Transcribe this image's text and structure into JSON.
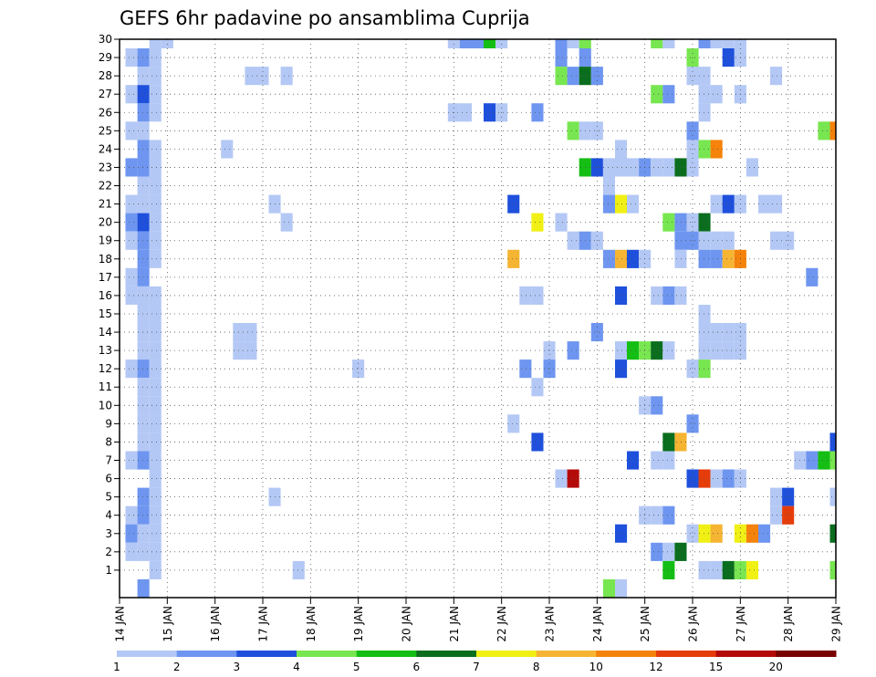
{
  "chart_data": {
    "type": "heatmap",
    "title": "GEFS 6hr padavine po ansamblima Cuprija",
    "x_ticks": [
      "14 JAN",
      "15 JAN",
      "16 JAN",
      "17 JAN",
      "18 JAN",
      "19 JAN",
      "20 JAN",
      "21 JAN",
      "22 JAN",
      "23 JAN",
      "24 JAN",
      "25 JAN",
      "26 JAN",
      "27 JAN",
      "28 JAN",
      "29 JAN"
    ],
    "y_ticks": [
      "1",
      "2",
      "3",
      "4",
      "5",
      "6",
      "7",
      "8",
      "9",
      "10",
      "11",
      "12",
      "13",
      "14",
      "15",
      "16",
      "17",
      "18",
      "19",
      "20",
      "21",
      "22",
      "23",
      "24",
      "25",
      "26",
      "27",
      "28",
      "29",
      "30"
    ],
    "x_range_days": [
      14.0,
      29.0
    ],
    "step_hours": 6,
    "y_range_members": [
      0,
      30
    ],
    "grid": "dotted",
    "colorbar": {
      "labels": [
        "1",
        "2",
        "3",
        "4",
        "5",
        "6",
        "7",
        "8",
        "10",
        "12",
        "15",
        "20"
      ],
      "colors": [
        "#b4c8f5",
        "#6e96f0",
        "#1e50dc",
        "#78e650",
        "#14be14",
        "#0a6e1e",
        "#f0f014",
        "#f5b432",
        "#f5820a",
        "#e63c0a",
        "#b40a0a",
        "#780000"
      ]
    },
    "cells": [
      [
        30,
        14.75,
        0
      ],
      [
        30,
        15.0,
        0
      ],
      [
        30,
        21.0,
        0
      ],
      [
        30,
        21.25,
        1
      ],
      [
        30,
        21.5,
        1
      ],
      [
        30,
        21.75,
        4
      ],
      [
        30,
        22.0,
        0
      ],
      [
        30,
        23.25,
        1
      ],
      [
        30,
        23.5,
        0
      ],
      [
        30,
        23.75,
        3
      ],
      [
        30,
        25.25,
        3
      ],
      [
        30,
        25.5,
        0
      ],
      [
        30,
        26.25,
        1
      ],
      [
        30,
        26.5,
        0
      ],
      [
        30,
        26.75,
        0
      ],
      [
        30,
        27.0,
        0
      ],
      [
        29,
        14.25,
        0
      ],
      [
        29,
        14.5,
        1
      ],
      [
        29,
        14.75,
        0
      ],
      [
        29,
        23.25,
        1
      ],
      [
        29,
        23.75,
        1
      ],
      [
        29,
        26.0,
        3
      ],
      [
        29,
        26.75,
        2
      ],
      [
        29,
        27.0,
        0
      ],
      [
        28,
        14.5,
        0
      ],
      [
        28,
        14.75,
        0
      ],
      [
        28,
        16.75,
        0
      ],
      [
        28,
        17.0,
        0
      ],
      [
        28,
        17.5,
        0
      ],
      [
        28,
        23.25,
        3
      ],
      [
        28,
        23.5,
        1
      ],
      [
        28,
        23.75,
        5
      ],
      [
        28,
        24.0,
        1
      ],
      [
        28,
        26.0,
        0
      ],
      [
        28,
        26.25,
        0
      ],
      [
        28,
        27.75,
        0
      ],
      [
        27,
        14.25,
        0
      ],
      [
        27,
        14.5,
        2
      ],
      [
        27,
        14.75,
        0
      ],
      [
        27,
        25.25,
        3
      ],
      [
        27,
        25.5,
        1
      ],
      [
        27,
        26.25,
        0
      ],
      [
        27,
        26.5,
        0
      ],
      [
        27,
        27.0,
        0
      ],
      [
        26,
        14.5,
        1
      ],
      [
        26,
        14.75,
        0
      ],
      [
        26,
        21.0,
        0
      ],
      [
        26,
        21.25,
        0
      ],
      [
        26,
        21.75,
        2
      ],
      [
        26,
        22.0,
        0
      ],
      [
        26,
        22.75,
        1
      ],
      [
        26,
        26.25,
        0
      ],
      [
        25,
        14.25,
        0
      ],
      [
        25,
        14.5,
        0
      ],
      [
        25,
        23.5,
        3
      ],
      [
        25,
        23.75,
        0
      ],
      [
        25,
        24.0,
        0
      ],
      [
        25,
        26.0,
        1
      ],
      [
        25,
        28.75,
        3
      ],
      [
        25,
        29.0,
        8
      ],
      [
        24,
        14.5,
        1
      ],
      [
        24,
        14.75,
        0
      ],
      [
        24,
        16.25,
        0
      ],
      [
        24,
        24.5,
        0
      ],
      [
        24,
        26.0,
        0
      ],
      [
        24,
        26.25,
        3
      ],
      [
        24,
        26.5,
        8
      ],
      [
        23,
        14.25,
        1
      ],
      [
        23,
        14.5,
        1
      ],
      [
        23,
        14.75,
        0
      ],
      [
        23,
        23.75,
        4
      ],
      [
        23,
        24.0,
        2
      ],
      [
        23,
        24.25,
        0
      ],
      [
        23,
        24.5,
        0
      ],
      [
        23,
        24.75,
        0
      ],
      [
        23,
        25.0,
        1
      ],
      [
        23,
        25.25,
        0
      ],
      [
        23,
        25.5,
        0
      ],
      [
        23,
        25.75,
        5
      ],
      [
        23,
        26.0,
        0
      ],
      [
        23,
        27.25,
        0
      ],
      [
        22,
        14.5,
        0
      ],
      [
        22,
        14.75,
        0
      ],
      [
        22,
        24.25,
        0
      ],
      [
        21,
        14.25,
        0
      ],
      [
        21,
        14.5,
        0
      ],
      [
        21,
        14.75,
        0
      ],
      [
        21,
        17.25,
        0
      ],
      [
        21,
        22.25,
        2
      ],
      [
        21,
        24.25,
        1
      ],
      [
        21,
        24.5,
        6
      ],
      [
        21,
        24.75,
        0
      ],
      [
        21,
        26.5,
        0
      ],
      [
        21,
        26.75,
        2
      ],
      [
        21,
        27.0,
        0
      ],
      [
        21,
        27.5,
        0
      ],
      [
        21,
        27.75,
        0
      ],
      [
        20,
        14.25,
        1
      ],
      [
        20,
        14.5,
        2
      ],
      [
        20,
        14.75,
        0
      ],
      [
        20,
        17.5,
        0
      ],
      [
        20,
        22.75,
        6
      ],
      [
        20,
        23.25,
        0
      ],
      [
        20,
        25.5,
        3
      ],
      [
        20,
        25.75,
        1
      ],
      [
        20,
        26.0,
        0
      ],
      [
        20,
        26.25,
        5
      ],
      [
        19,
        14.25,
        0
      ],
      [
        19,
        14.5,
        1
      ],
      [
        19,
        14.75,
        0
      ],
      [
        19,
        23.5,
        0
      ],
      [
        19,
        23.75,
        1
      ],
      [
        19,
        24.0,
        0
      ],
      [
        19,
        25.75,
        1
      ],
      [
        19,
        26.0,
        1
      ],
      [
        19,
        26.25,
        0
      ],
      [
        19,
        26.5,
        0
      ],
      [
        19,
        26.75,
        0
      ],
      [
        19,
        27.75,
        0
      ],
      [
        19,
        28.0,
        0
      ],
      [
        18,
        14.5,
        1
      ],
      [
        18,
        14.75,
        0
      ],
      [
        18,
        22.25,
        7
      ],
      [
        18,
        24.25,
        1
      ],
      [
        18,
        24.5,
        7
      ],
      [
        18,
        24.75,
        2
      ],
      [
        18,
        25.0,
        0
      ],
      [
        18,
        25.75,
        0
      ],
      [
        18,
        26.25,
        1
      ],
      [
        18,
        26.5,
        1
      ],
      [
        18,
        26.75,
        7
      ],
      [
        18,
        27.0,
        8
      ],
      [
        17,
        14.25,
        0
      ],
      [
        17,
        14.5,
        1
      ],
      [
        17,
        28.5,
        1
      ],
      [
        16,
        14.25,
        0
      ],
      [
        16,
        14.5,
        0
      ],
      [
        16,
        14.75,
        0
      ],
      [
        16,
        22.5,
        0
      ],
      [
        16,
        22.75,
        0
      ],
      [
        16,
        24.5,
        2
      ],
      [
        16,
        25.25,
        0
      ],
      [
        16,
        25.5,
        1
      ],
      [
        16,
        25.75,
        0
      ],
      [
        15,
        14.5,
        0
      ],
      [
        15,
        14.75,
        0
      ],
      [
        15,
        26.25,
        0
      ],
      [
        14,
        14.5,
        0
      ],
      [
        14,
        14.75,
        0
      ],
      [
        14,
        16.5,
        0
      ],
      [
        14,
        16.75,
        0
      ],
      [
        14,
        24.0,
        1
      ],
      [
        14,
        26.25,
        0
      ],
      [
        14,
        26.5,
        0
      ],
      [
        14,
        26.75,
        0
      ],
      [
        14,
        27.0,
        0
      ],
      [
        13,
        14.5,
        0
      ],
      [
        13,
        14.75,
        0
      ],
      [
        13,
        16.5,
        0
      ],
      [
        13,
        16.75,
        0
      ],
      [
        13,
        23.0,
        0
      ],
      [
        13,
        23.5,
        1
      ],
      [
        13,
        24.5,
        0
      ],
      [
        13,
        24.75,
        4
      ],
      [
        13,
        25.0,
        3
      ],
      [
        13,
        25.25,
        5
      ],
      [
        13,
        25.5,
        0
      ],
      [
        13,
        26.25,
        0
      ],
      [
        13,
        26.5,
        0
      ],
      [
        13,
        26.75,
        0
      ],
      [
        13,
        27.0,
        0
      ],
      [
        12,
        14.25,
        0
      ],
      [
        12,
        14.5,
        1
      ],
      [
        12,
        14.75,
        0
      ],
      [
        12,
        19.0,
        0
      ],
      [
        12,
        22.5,
        1
      ],
      [
        12,
        23.0,
        1
      ],
      [
        12,
        24.5,
        2
      ],
      [
        12,
        26.0,
        0
      ],
      [
        12,
        26.25,
        3
      ],
      [
        11,
        14.5,
        0
      ],
      [
        11,
        14.75,
        0
      ],
      [
        11,
        22.75,
        0
      ],
      [
        10,
        14.5,
        0
      ],
      [
        10,
        14.75,
        0
      ],
      [
        10,
        25.0,
        0
      ],
      [
        10,
        25.25,
        1
      ],
      [
        9,
        14.5,
        0
      ],
      [
        9,
        14.75,
        0
      ],
      [
        9,
        22.25,
        0
      ],
      [
        9,
        26.0,
        1
      ],
      [
        8,
        14.5,
        0
      ],
      [
        8,
        14.75,
        0
      ],
      [
        8,
        22.75,
        2
      ],
      [
        8,
        25.5,
        5
      ],
      [
        8,
        25.75,
        7
      ],
      [
        8,
        29.0,
        2
      ],
      [
        7,
        14.25,
        0
      ],
      [
        7,
        14.5,
        1
      ],
      [
        7,
        14.75,
        0
      ],
      [
        7,
        24.75,
        2
      ],
      [
        7,
        25.25,
        0
      ],
      [
        7,
        25.5,
        0
      ],
      [
        7,
        28.25,
        0
      ],
      [
        7,
        28.5,
        1
      ],
      [
        7,
        28.75,
        4
      ],
      [
        7,
        29.0,
        3
      ],
      [
        6,
        14.75,
        0
      ],
      [
        6,
        23.25,
        0
      ],
      [
        6,
        23.5,
        10
      ],
      [
        6,
        26.0,
        2
      ],
      [
        6,
        26.25,
        9
      ],
      [
        6,
        26.5,
        0
      ],
      [
        6,
        26.75,
        1
      ],
      [
        6,
        27.0,
        0
      ],
      [
        5,
        14.5,
        1
      ],
      [
        5,
        14.75,
        0
      ],
      [
        5,
        17.25,
        0
      ],
      [
        5,
        27.75,
        0
      ],
      [
        5,
        28.0,
        2
      ],
      [
        5,
        29.0,
        0
      ],
      [
        4,
        14.25,
        0
      ],
      [
        4,
        14.5,
        1
      ],
      [
        4,
        14.75,
        0
      ],
      [
        4,
        25.0,
        0
      ],
      [
        4,
        25.25,
        0
      ],
      [
        4,
        25.5,
        1
      ],
      [
        4,
        27.75,
        0
      ],
      [
        4,
        28.0,
        9
      ],
      [
        3,
        14.25,
        1
      ],
      [
        3,
        14.5,
        0
      ],
      [
        3,
        14.75,
        0
      ],
      [
        3,
        24.5,
        2
      ],
      [
        3,
        26.0,
        0
      ],
      [
        3,
        26.25,
        6
      ],
      [
        3,
        26.5,
        7
      ],
      [
        3,
        27.0,
        6
      ],
      [
        3,
        27.25,
        8
      ],
      [
        3,
        27.5,
        1
      ],
      [
        3,
        29.0,
        5
      ],
      [
        2,
        14.25,
        0
      ],
      [
        2,
        14.5,
        0
      ],
      [
        2,
        14.75,
        0
      ],
      [
        2,
        25.25,
        1
      ],
      [
        2,
        25.5,
        0
      ],
      [
        2,
        25.75,
        5
      ],
      [
        1,
        14.75,
        0
      ],
      [
        1,
        17.75,
        0
      ],
      [
        1,
        25.5,
        4
      ],
      [
        1,
        26.25,
        0
      ],
      [
        1,
        26.5,
        0
      ],
      [
        1,
        26.75,
        5
      ],
      [
        1,
        27.0,
        3
      ],
      [
        1,
        27.25,
        6
      ],
      [
        1,
        29.0,
        3
      ],
      [
        0,
        14.5,
        1
      ],
      [
        0,
        24.25,
        3
      ],
      [
        0,
        24.5,
        0
      ]
    ]
  }
}
